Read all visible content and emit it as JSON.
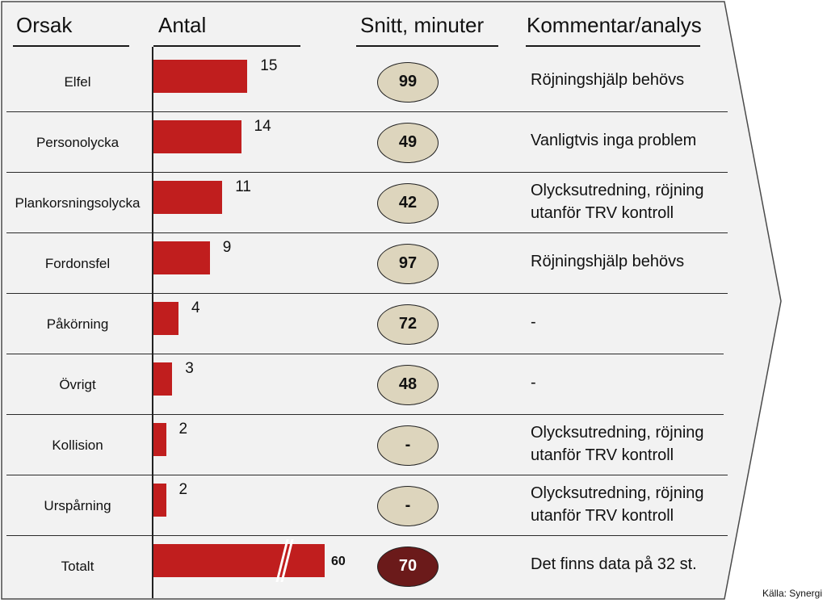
{
  "headers": {
    "orsak": "Orsak",
    "antal": "Antal",
    "snitt": "Snitt, minuter",
    "kommentar": "Kommentar/analys"
  },
  "chart_data": {
    "type": "bar",
    "orientation": "horizontal",
    "categories": [
      "Elfel",
      "Personolycka",
      "Plankorsningsolycka",
      "Fordonsfel",
      "Påkörning",
      "Övrigt",
      "Kollision",
      "Urspårning",
      "Totalt"
    ],
    "values": [
      15,
      14,
      11,
      9,
      4,
      3,
      2,
      2,
      60
    ],
    "value_labels": [
      "15",
      "14",
      "11",
      "9",
      "4",
      "3",
      "2",
      "2",
      "60"
    ],
    "total_axis_break": true,
    "avg_minutes": [
      "99",
      "49",
      "42",
      "97",
      "72",
      "48",
      "-",
      "-",
      "70"
    ],
    "comments": [
      [
        "Röjningshjälp behövs"
      ],
      [
        "Vanligtvis inga problem"
      ],
      [
        "Olycksutredning, röjning",
        "utanför TRV kontroll"
      ],
      [
        "Röjningshjälp behövs"
      ],
      [
        "-"
      ],
      [
        "-"
      ],
      [
        "Olycksutredning, röjning",
        "utanför TRV kontroll"
      ],
      [
        "Olycksutredning, röjning",
        "utanför TRV kontroll"
      ],
      [
        "Det finns data på 32 st."
      ]
    ]
  },
  "colors": {
    "bar": "#c01e1e",
    "oval_fill": "#ddd5bd",
    "oval_total_fill": "#6b1a1a",
    "arrow_fill": "#f2f2f2"
  },
  "source": "Källa:  Synergi"
}
